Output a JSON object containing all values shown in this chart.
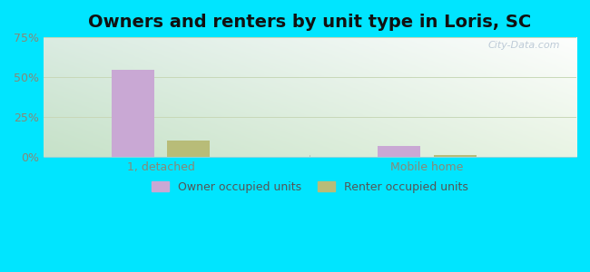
{
  "title": "Owners and renters by unit type in Loris, SC",
  "categories": [
    "1, detached",
    "Mobile home"
  ],
  "owner_values": [
    54.5,
    7.0
  ],
  "renter_values": [
    10.5,
    1.5
  ],
  "owner_color": "#c9a8d4",
  "renter_color": "#b8bc78",
  "bar_width": 0.08,
  "group_positions": [
    0.22,
    0.72
  ],
  "ylim": [
    0,
    75
  ],
  "yticks": [
    0,
    25,
    50,
    75
  ],
  "ytick_labels": [
    "0%",
    "25%",
    "50%",
    "75%"
  ],
  "background_outer": "#00e5ff",
  "bg_top_left": "#d8ede0",
  "bg_top_right": "#e8f5f0",
  "bg_bottom_left": "#c8e8c0",
  "bg_bottom_right": "#dff0e8",
  "grid_color": "#c8d8b8",
  "watermark": "City-Data.com",
  "legend_owner": "Owner occupied units",
  "legend_renter": "Renter occupied units",
  "title_fontsize": 14,
  "tick_fontsize": 9,
  "legend_fontsize": 9,
  "xtick_color": "#888877",
  "ytick_color": "#888877"
}
